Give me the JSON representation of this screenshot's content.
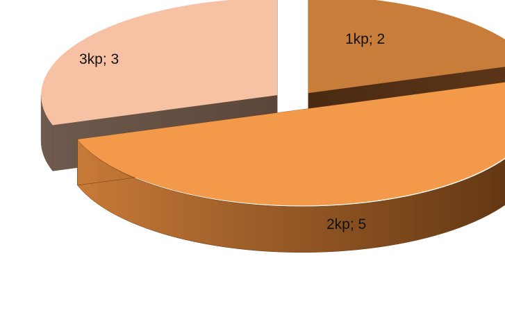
{
  "chart_data": {
    "type": "pie",
    "style": "3d-exploded",
    "title": "",
    "categories": [
      "1kp",
      "2kp",
      "3kp"
    ],
    "values": [
      2,
      5,
      3
    ],
    "data_labels": [
      "1kp; 2",
      "2kp; 5",
      "3kp; 3"
    ],
    "colors": [
      "#c87d3a",
      "#f29a4a",
      "#f7c2a4"
    ],
    "side_colors": [
      "#5a3418",
      "#6b3a13",
      "#6a5448"
    ],
    "legend": "none",
    "grid": false
  }
}
